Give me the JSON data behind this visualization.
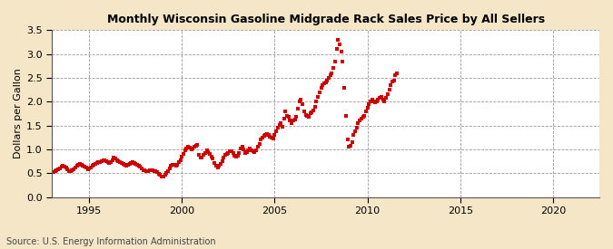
{
  "title": "Monthly Wisconsin Gasoline Midgrade Rack Sales Price by All Sellers",
  "ylabel": "Dollars per Gallon",
  "source": "Source: U.S. Energy Information Administration",
  "fig_background_color": "#f5e6c8",
  "plot_background_color": "#ffffff",
  "marker_color": "#cc0000",
  "marker_size": 2.5,
  "xlim": [
    1993.0,
    2022.5
  ],
  "ylim": [
    0.0,
    3.5
  ],
  "yticks": [
    0.0,
    0.5,
    1.0,
    1.5,
    2.0,
    2.5,
    3.0,
    3.5
  ],
  "xticks": [
    1995,
    2000,
    2005,
    2010,
    2015,
    2020
  ],
  "data": [
    [
      1993.08,
      0.52
    ],
    [
      1993.17,
      0.55
    ],
    [
      1993.25,
      0.57
    ],
    [
      1993.33,
      0.58
    ],
    [
      1993.42,
      0.6
    ],
    [
      1993.5,
      0.63
    ],
    [
      1993.58,
      0.65
    ],
    [
      1993.67,
      0.63
    ],
    [
      1993.75,
      0.61
    ],
    [
      1993.83,
      0.58
    ],
    [
      1993.92,
      0.55
    ],
    [
      1994.0,
      0.55
    ],
    [
      1994.08,
      0.57
    ],
    [
      1994.17,
      0.59
    ],
    [
      1994.25,
      0.62
    ],
    [
      1994.33,
      0.65
    ],
    [
      1994.42,
      0.68
    ],
    [
      1994.5,
      0.7
    ],
    [
      1994.58,
      0.68
    ],
    [
      1994.67,
      0.65
    ],
    [
      1994.75,
      0.63
    ],
    [
      1994.83,
      0.61
    ],
    [
      1994.92,
      0.59
    ],
    [
      1995.0,
      0.6
    ],
    [
      1995.08,
      0.62
    ],
    [
      1995.17,
      0.65
    ],
    [
      1995.25,
      0.68
    ],
    [
      1995.33,
      0.7
    ],
    [
      1995.42,
      0.72
    ],
    [
      1995.5,
      0.73
    ],
    [
      1995.58,
      0.74
    ],
    [
      1995.67,
      0.76
    ],
    [
      1995.75,
      0.77
    ],
    [
      1995.83,
      0.78
    ],
    [
      1995.92,
      0.76
    ],
    [
      1996.0,
      0.74
    ],
    [
      1996.08,
      0.72
    ],
    [
      1996.17,
      0.74
    ],
    [
      1996.25,
      0.78
    ],
    [
      1996.33,
      0.82
    ],
    [
      1996.42,
      0.8
    ],
    [
      1996.5,
      0.77
    ],
    [
      1996.58,
      0.75
    ],
    [
      1996.67,
      0.73
    ],
    [
      1996.75,
      0.71
    ],
    [
      1996.83,
      0.69
    ],
    [
      1996.92,
      0.67
    ],
    [
      1997.0,
      0.65
    ],
    [
      1997.08,
      0.67
    ],
    [
      1997.17,
      0.7
    ],
    [
      1997.25,
      0.72
    ],
    [
      1997.33,
      0.74
    ],
    [
      1997.42,
      0.72
    ],
    [
      1997.5,
      0.7
    ],
    [
      1997.58,
      0.68
    ],
    [
      1997.67,
      0.65
    ],
    [
      1997.75,
      0.63
    ],
    [
      1997.83,
      0.6
    ],
    [
      1997.92,
      0.57
    ],
    [
      1998.0,
      0.56
    ],
    [
      1998.08,
      0.54
    ],
    [
      1998.17,
      0.55
    ],
    [
      1998.25,
      0.57
    ],
    [
      1998.33,
      0.57
    ],
    [
      1998.42,
      0.56
    ],
    [
      1998.5,
      0.55
    ],
    [
      1998.58,
      0.54
    ],
    [
      1998.67,
      0.52
    ],
    [
      1998.75,
      0.49
    ],
    [
      1998.83,
      0.46
    ],
    [
      1998.92,
      0.43
    ],
    [
      1999.0,
      0.43
    ],
    [
      1999.08,
      0.46
    ],
    [
      1999.17,
      0.5
    ],
    [
      1999.25,
      0.55
    ],
    [
      1999.33,
      0.6
    ],
    [
      1999.42,
      0.65
    ],
    [
      1999.5,
      0.68
    ],
    [
      1999.58,
      0.67
    ],
    [
      1999.67,
      0.65
    ],
    [
      1999.75,
      0.68
    ],
    [
      1999.83,
      0.73
    ],
    [
      1999.92,
      0.78
    ],
    [
      2000.0,
      0.85
    ],
    [
      2000.08,
      0.9
    ],
    [
      2000.17,
      0.98
    ],
    [
      2000.25,
      1.02
    ],
    [
      2000.33,
      1.05
    ],
    [
      2000.42,
      1.03
    ],
    [
      2000.5,
      1.0
    ],
    [
      2000.58,
      1.02
    ],
    [
      2000.67,
      1.05
    ],
    [
      2000.75,
      1.08
    ],
    [
      2000.83,
      1.1
    ],
    [
      2000.92,
      0.88
    ],
    [
      2001.0,
      0.83
    ],
    [
      2001.08,
      0.82
    ],
    [
      2001.17,
      0.88
    ],
    [
      2001.25,
      0.93
    ],
    [
      2001.33,
      0.98
    ],
    [
      2001.42,
      0.95
    ],
    [
      2001.5,
      0.9
    ],
    [
      2001.58,
      0.85
    ],
    [
      2001.67,
      0.8
    ],
    [
      2001.75,
      0.72
    ],
    [
      2001.83,
      0.65
    ],
    [
      2001.92,
      0.62
    ],
    [
      2002.0,
      0.65
    ],
    [
      2002.08,
      0.7
    ],
    [
      2002.17,
      0.75
    ],
    [
      2002.25,
      0.82
    ],
    [
      2002.33,
      0.88
    ],
    [
      2002.42,
      0.9
    ],
    [
      2002.5,
      0.93
    ],
    [
      2002.58,
      0.97
    ],
    [
      2002.67,
      0.96
    ],
    [
      2002.75,
      0.92
    ],
    [
      2002.83,
      0.87
    ],
    [
      2002.92,
      0.84
    ],
    [
      2003.0,
      0.87
    ],
    [
      2003.08,
      0.93
    ],
    [
      2003.17,
      1.02
    ],
    [
      2003.25,
      1.05
    ],
    [
      2003.33,
      1.0
    ],
    [
      2003.42,
      0.93
    ],
    [
      2003.5,
      0.95
    ],
    [
      2003.58,
      0.98
    ],
    [
      2003.67,
      1.01
    ],
    [
      2003.75,
      0.98
    ],
    [
      2003.83,
      0.97
    ],
    [
      2003.92,
      0.95
    ],
    [
      2004.0,
      0.98
    ],
    [
      2004.08,
      1.05
    ],
    [
      2004.17,
      1.12
    ],
    [
      2004.25,
      1.2
    ],
    [
      2004.33,
      1.25
    ],
    [
      2004.42,
      1.28
    ],
    [
      2004.5,
      1.3
    ],
    [
      2004.58,
      1.32
    ],
    [
      2004.67,
      1.3
    ],
    [
      2004.75,
      1.27
    ],
    [
      2004.83,
      1.25
    ],
    [
      2004.92,
      1.22
    ],
    [
      2005.0,
      1.3
    ],
    [
      2005.08,
      1.38
    ],
    [
      2005.17,
      1.45
    ],
    [
      2005.25,
      1.52
    ],
    [
      2005.33,
      1.55
    ],
    [
      2005.42,
      1.48
    ],
    [
      2005.5,
      1.65
    ],
    [
      2005.58,
      1.8
    ],
    [
      2005.67,
      1.7
    ],
    [
      2005.75,
      1.68
    ],
    [
      2005.83,
      1.6
    ],
    [
      2005.92,
      1.55
    ],
    [
      2006.0,
      1.6
    ],
    [
      2006.08,
      1.62
    ],
    [
      2006.17,
      1.68
    ],
    [
      2006.25,
      1.85
    ],
    [
      2006.33,
      2.0
    ],
    [
      2006.42,
      2.05
    ],
    [
      2006.5,
      1.95
    ],
    [
      2006.58,
      1.8
    ],
    [
      2006.67,
      1.72
    ],
    [
      2006.75,
      1.7
    ],
    [
      2006.83,
      1.68
    ],
    [
      2006.92,
      1.75
    ],
    [
      2007.0,
      1.78
    ],
    [
      2007.08,
      1.82
    ],
    [
      2007.17,
      1.9
    ],
    [
      2007.25,
      2.0
    ],
    [
      2007.33,
      2.1
    ],
    [
      2007.42,
      2.2
    ],
    [
      2007.5,
      2.3
    ],
    [
      2007.58,
      2.35
    ],
    [
      2007.67,
      2.38
    ],
    [
      2007.75,
      2.4
    ],
    [
      2007.83,
      2.45
    ],
    [
      2007.92,
      2.5
    ],
    [
      2008.0,
      2.55
    ],
    [
      2008.08,
      2.6
    ],
    [
      2008.17,
      2.7
    ],
    [
      2008.25,
      2.85
    ],
    [
      2008.33,
      3.1
    ],
    [
      2008.42,
      3.3
    ],
    [
      2008.5,
      3.2
    ],
    [
      2008.58,
      3.05
    ],
    [
      2008.67,
      2.85
    ],
    [
      2008.75,
      2.3
    ],
    [
      2008.83,
      1.7
    ],
    [
      2008.92,
      1.2
    ],
    [
      2009.0,
      1.05
    ],
    [
      2009.08,
      1.08
    ],
    [
      2009.17,
      1.15
    ],
    [
      2009.25,
      1.3
    ],
    [
      2009.33,
      1.38
    ],
    [
      2009.42,
      1.45
    ],
    [
      2009.5,
      1.55
    ],
    [
      2009.58,
      1.6
    ],
    [
      2009.67,
      1.65
    ],
    [
      2009.75,
      1.68
    ],
    [
      2009.83,
      1.7
    ],
    [
      2009.92,
      1.8
    ],
    [
      2010.0,
      1.88
    ],
    [
      2010.08,
      1.95
    ],
    [
      2010.17,
      2.0
    ],
    [
      2010.25,
      2.05
    ],
    [
      2010.33,
      2.0
    ],
    [
      2010.42,
      1.98
    ],
    [
      2010.5,
      2.0
    ],
    [
      2010.58,
      2.05
    ],
    [
      2010.67,
      2.08
    ],
    [
      2010.75,
      2.1
    ],
    [
      2010.83,
      2.05
    ],
    [
      2010.92,
      2.0
    ],
    [
      2011.0,
      2.08
    ],
    [
      2011.08,
      2.15
    ],
    [
      2011.17,
      2.25
    ],
    [
      2011.25,
      2.35
    ],
    [
      2011.33,
      2.42
    ],
    [
      2011.42,
      2.45
    ],
    [
      2011.5,
      2.55
    ],
    [
      2011.58,
      2.6
    ]
  ]
}
